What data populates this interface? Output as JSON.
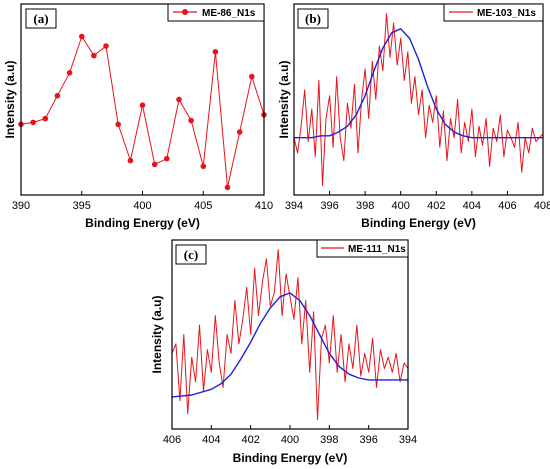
{
  "colors": {
    "data": "#e8141b",
    "fit": "#1d23d6",
    "axis": "#000000"
  },
  "chart_data": [
    {
      "type": "line",
      "panel_label": "(a)",
      "xlabel": "Binding Energy (eV)",
      "ylabel": "Intensity (a.u)",
      "xlim": [
        390,
        410
      ],
      "x_reversed": false,
      "ylim": [
        0,
        1
      ],
      "xticks": [
        "390",
        "395",
        "400",
        "405",
        "410"
      ],
      "markers": true,
      "legend_position": "top-right",
      "series": [
        {
          "name": "ME-86_N1s",
          "x": [
            390,
            391,
            392,
            393,
            394,
            395,
            396,
            397,
            398,
            399,
            400,
            401,
            402,
            403,
            404,
            405,
            406,
            407,
            408,
            409,
            410
          ],
          "y": [
            0.37,
            0.38,
            0.4,
            0.52,
            0.64,
            0.83,
            0.73,
            0.78,
            0.37,
            0.18,
            0.47,
            0.16,
            0.19,
            0.5,
            0.39,
            0.15,
            0.75,
            0.04,
            0.33,
            0.62,
            0.42
          ]
        }
      ]
    },
    {
      "type": "line",
      "panel_label": "(b)",
      "xlabel": "Binding Energy (eV)",
      "ylabel": "Intensity (a.u)",
      "xlim": [
        394,
        408
      ],
      "x_reversed": false,
      "ylim": [
        0,
        1
      ],
      "xticks": [
        "394",
        "396",
        "398",
        "400",
        "402",
        "404",
        "406",
        "408"
      ],
      "markers": false,
      "legend_position": "top-right",
      "series": [
        {
          "name": "ME-103_N1s",
          "x": [
            394.0,
            394.2,
            394.4,
            394.6,
            394.8,
            395.0,
            395.2,
            395.4,
            395.6,
            395.8,
            396.0,
            396.2,
            396.4,
            396.6,
            396.8,
            397.0,
            397.2,
            397.4,
            397.6,
            397.8,
            398.0,
            398.2,
            398.4,
            398.6,
            398.8,
            399.0,
            399.2,
            399.4,
            399.6,
            399.8,
            400.0,
            400.2,
            400.4,
            400.6,
            400.8,
            401.0,
            401.2,
            401.4,
            401.6,
            401.8,
            402.0,
            402.2,
            402.4,
            402.6,
            402.8,
            403.0,
            403.2,
            403.4,
            403.6,
            403.8,
            404.0,
            404.2,
            404.4,
            404.6,
            404.8,
            405.0,
            405.2,
            405.4,
            405.6,
            405.8,
            406.0,
            406.2,
            406.4,
            406.6,
            406.8,
            407.0,
            407.2,
            407.4,
            407.6,
            407.8,
            408.0
          ],
          "y": [
            0.3,
            0.22,
            0.36,
            0.55,
            0.28,
            0.45,
            0.2,
            0.6,
            0.05,
            0.4,
            0.52,
            0.25,
            0.62,
            0.3,
            0.18,
            0.48,
            0.35,
            0.58,
            0.22,
            0.5,
            0.66,
            0.4,
            0.7,
            0.5,
            0.78,
            0.65,
            0.95,
            0.72,
            0.9,
            0.68,
            0.82,
            0.6,
            0.75,
            0.48,
            0.62,
            0.42,
            0.55,
            0.3,
            0.47,
            0.38,
            0.52,
            0.25,
            0.44,
            0.18,
            0.4,
            0.3,
            0.5,
            0.22,
            0.38,
            0.28,
            0.45,
            0.2,
            0.36,
            0.26,
            0.4,
            0.15,
            0.35,
            0.28,
            0.42,
            0.2,
            0.34,
            0.3,
            0.25,
            0.38,
            0.12,
            0.3,
            0.22,
            0.35,
            0.28,
            0.3,
            0.32
          ]
        },
        {
          "name": "",
          "x": [
            394.0,
            394.5,
            395.0,
            395.5,
            396.0,
            396.5,
            397.0,
            397.5,
            398.0,
            398.5,
            399.0,
            399.5,
            400.0,
            400.5,
            401.0,
            401.5,
            402.0,
            402.5,
            403.0,
            403.5,
            404.0,
            405.0,
            406.0,
            407.0,
            408.0
          ],
          "y": [
            0.3,
            0.3,
            0.3,
            0.31,
            0.31,
            0.33,
            0.36,
            0.42,
            0.52,
            0.65,
            0.77,
            0.85,
            0.87,
            0.82,
            0.71,
            0.57,
            0.45,
            0.37,
            0.33,
            0.31,
            0.3,
            0.3,
            0.3,
            0.3,
            0.3
          ]
        }
      ]
    },
    {
      "type": "line",
      "panel_label": "(c)",
      "xlabel": "Binding Energy (eV)",
      "ylabel": "Intensity (a.u)",
      "xlim": [
        406,
        394
      ],
      "x_reversed": true,
      "ylim": [
        0,
        1
      ],
      "xticks": [
        "406",
        "404",
        "402",
        "400",
        "398",
        "396",
        "394"
      ],
      "markers": false,
      "legend_position": "top-right",
      "series": [
        {
          "name": "ME-111_N1s",
          "x": [
            406.0,
            405.8,
            405.6,
            405.4,
            405.2,
            405.0,
            404.8,
            404.6,
            404.4,
            404.2,
            404.0,
            403.8,
            403.6,
            403.4,
            403.2,
            403.0,
            402.8,
            402.6,
            402.4,
            402.2,
            402.0,
            401.8,
            401.6,
            401.4,
            401.2,
            401.0,
            400.8,
            400.6,
            400.4,
            400.2,
            400.0,
            399.8,
            399.6,
            399.4,
            399.2,
            399.0,
            398.8,
            398.6,
            398.4,
            398.2,
            398.0,
            397.8,
            397.6,
            397.4,
            397.2,
            397.0,
            396.8,
            396.6,
            396.4,
            396.2,
            396.0,
            395.8,
            395.6,
            395.4,
            395.2,
            395.0,
            394.8,
            394.6,
            394.4,
            394.2,
            394.0
          ],
          "y": [
            0.4,
            0.45,
            0.15,
            0.5,
            0.08,
            0.38,
            0.25,
            0.55,
            0.2,
            0.42,
            0.3,
            0.6,
            0.35,
            0.22,
            0.5,
            0.4,
            0.68,
            0.45,
            0.58,
            0.75,
            0.5,
            0.85,
            0.6,
            0.78,
            0.9,
            0.65,
            0.72,
            0.95,
            0.6,
            0.82,
            0.7,
            0.58,
            0.8,
            0.45,
            0.68,
            0.3,
            0.62,
            0.05,
            0.48,
            0.55,
            0.35,
            0.6,
            0.3,
            0.5,
            0.25,
            0.45,
            0.32,
            0.55,
            0.28,
            0.4,
            0.3,
            0.48,
            0.22,
            0.42,
            0.32,
            0.38,
            0.3,
            0.4,
            0.25,
            0.35,
            0.32
          ]
        },
        {
          "name": "",
          "x": [
            406.0,
            405.0,
            404.0,
            403.5,
            403.0,
            402.5,
            402.0,
            401.5,
            401.0,
            400.5,
            400.0,
            399.5,
            399.0,
            398.5,
            398.0,
            397.5,
            397.0,
            396.5,
            396.0,
            395.0,
            394.0
          ],
          "y": [
            0.17,
            0.18,
            0.21,
            0.24,
            0.29,
            0.37,
            0.46,
            0.56,
            0.64,
            0.7,
            0.72,
            0.68,
            0.6,
            0.5,
            0.4,
            0.33,
            0.29,
            0.27,
            0.26,
            0.26,
            0.26
          ]
        }
      ]
    }
  ]
}
